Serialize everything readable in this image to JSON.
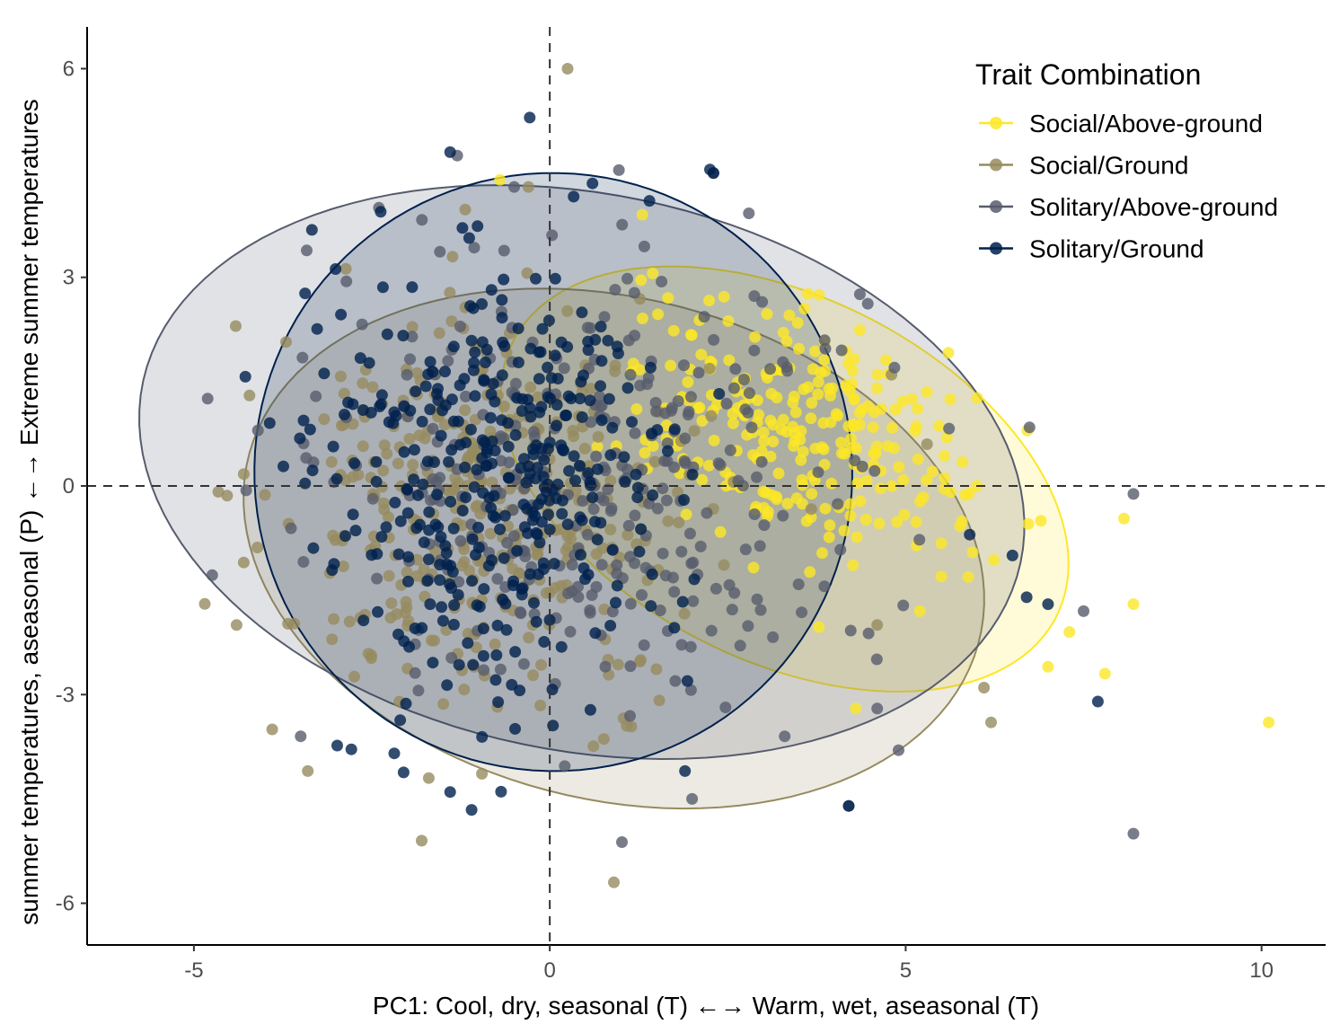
{
  "chart_data": {
    "type": "scatter",
    "title": "",
    "xlabel": "PC1: Cool, dry, seasonal (T) ←→ Warm, wet, aseasonal (T)",
    "ylabel": "summer temperatures, aseasonal (P) ←→ Extreme summer temperatures",
    "xlim": [
      -6.5,
      10.9
    ],
    "ylim": [
      -6.6,
      6.6
    ],
    "x_ticks": [
      -5,
      0,
      5,
      10
    ],
    "x_tick_labels": [
      "-5",
      "0",
      "5",
      "10"
    ],
    "y_ticks": [
      -6,
      -3,
      0,
      3,
      6
    ],
    "y_tick_labels": [
      "-6",
      "-3",
      "0",
      "3",
      "6"
    ],
    "grid": false,
    "reference_lines": {
      "x": 0,
      "y": 0,
      "style": "dashed"
    },
    "legend": {
      "title": "Trait Combination",
      "position": "top-right",
      "entries": [
        "Social/Above-ground",
        "Social/Ground",
        "Solitary/Above-ground",
        "Solitary/Ground"
      ]
    },
    "series": [
      {
        "name": "Social/Above-ground",
        "color": "#fde725",
        "ellipse": {
          "cx": 3.3,
          "cy": 0.1,
          "rx": 4.3,
          "ry": 2.6,
          "angle": -28
        },
        "cloud": {
          "cx": 3.6,
          "cy": 0.8,
          "sx": 1.3,
          "sy": 0.9,
          "rot": -28,
          "n": 260
        },
        "points": [
          {
            "x": 10.1,
            "y": -3.4
          },
          {
            "x": 8.2,
            "y": -1.7
          },
          {
            "x": 7.8,
            "y": -2.7
          },
          {
            "x": 7.3,
            "y": -2.1
          },
          {
            "x": 7.0,
            "y": -2.6
          },
          {
            "x": 6.9,
            "y": -0.5
          },
          {
            "x": 6.0,
            "y": 0.0
          },
          {
            "x": 4.3,
            "y": -3.2
          },
          {
            "x": 5.2,
            "y": -1.8
          },
          {
            "x": 1.3,
            "y": 3.9
          },
          {
            "x": -0.7,
            "y": 4.4
          },
          {
            "x": 5.5,
            "y": -1.3
          }
        ]
      },
      {
        "name": "Social/Ground",
        "color": "#968b5f",
        "ellipse": {
          "cx": 0.9,
          "cy": -0.9,
          "rx": 5.3,
          "ry": 3.6,
          "angle": -15
        },
        "cloud": {
          "cx": -0.9,
          "cy": -0.4,
          "sx": 1.5,
          "sy": 1.5,
          "rot": 0,
          "n": 360
        },
        "points": [
          {
            "x": 0.25,
            "y": 6.0
          },
          {
            "x": 0.9,
            "y": -5.7
          },
          {
            "x": -1.8,
            "y": -5.1
          },
          {
            "x": 6.2,
            "y": -3.4
          },
          {
            "x": -4.4,
            "y": -2.0
          },
          {
            "x": -3.4,
            "y": -4.1
          },
          {
            "x": 6.1,
            "y": -2.9
          },
          {
            "x": 4.8,
            "y": 1.6
          },
          {
            "x": 5.3,
            "y": 0.6
          },
          {
            "x": -1.7,
            "y": -4.2
          },
          {
            "x": -4.3,
            "y": -1.1
          },
          {
            "x": 4.6,
            "y": -2.0
          },
          {
            "x": -3.9,
            "y": -3.5
          },
          {
            "x": -0.3,
            "y": 4.3
          }
        ]
      },
      {
        "name": "Solitary/Above-ground",
        "color": "#575c6d",
        "ellipse": {
          "cx": 0.45,
          "cy": 0.2,
          "rx": 6.3,
          "ry": 4.0,
          "angle": -12
        },
        "cloud": {
          "cx": 0.5,
          "cy": 0.1,
          "sx": 2.0,
          "sy": 1.5,
          "rot": -15,
          "n": 320
        },
        "points": [
          {
            "x": 8.2,
            "y": -5.0
          },
          {
            "x": 4.2,
            "y": -4.6
          },
          {
            "x": 2.0,
            "y": -4.5
          },
          {
            "x": 4.9,
            "y": -3.8
          },
          {
            "x": -2.4,
            "y": 4.0
          },
          {
            "x": -0.5,
            "y": 4.3
          },
          {
            "x": 7.5,
            "y": -1.8
          },
          {
            "x": -4.1,
            "y": 0.8
          },
          {
            "x": 4.6,
            "y": -3.2
          },
          {
            "x": 3.3,
            "y": -3.6
          },
          {
            "x": -3.5,
            "y": -3.6
          },
          {
            "x": 4.1,
            "y": 1.95
          },
          {
            "x": 2.3,
            "y": 4.5
          },
          {
            "x": -1.3,
            "y": 4.75
          }
        ]
      },
      {
        "name": "Solitary/Ground",
        "color": "#00204d",
        "ellipse": {
          "cx": 0.05,
          "cy": 0.2,
          "rx": 4.2,
          "ry": 4.3,
          "angle": 2
        },
        "cloud": {
          "cx": -0.8,
          "cy": 0.1,
          "sx": 1.2,
          "sy": 1.6,
          "rot": 0,
          "n": 380
        },
        "points": [
          {
            "x": 2.25,
            "y": 4.55
          },
          {
            "x": 2.3,
            "y": 4.5
          },
          {
            "x": -1.4,
            "y": 4.8
          },
          {
            "x": 0.6,
            "y": 4.35
          },
          {
            "x": 7.7,
            "y": -3.1
          },
          {
            "x": 1.9,
            "y": -4.1
          },
          {
            "x": -1.4,
            "y": -4.4
          },
          {
            "x": 7.0,
            "y": -1.7
          },
          {
            "x": 6.7,
            "y": -1.6
          },
          {
            "x": 4.2,
            "y": -4.6
          },
          {
            "x": -2.2,
            "y": 0.9
          },
          {
            "x": 1.4,
            "y": 4.1
          },
          {
            "x": 5.9,
            "y": -0.7
          },
          {
            "x": 6.5,
            "y": -1.0
          }
        ]
      }
    ]
  }
}
